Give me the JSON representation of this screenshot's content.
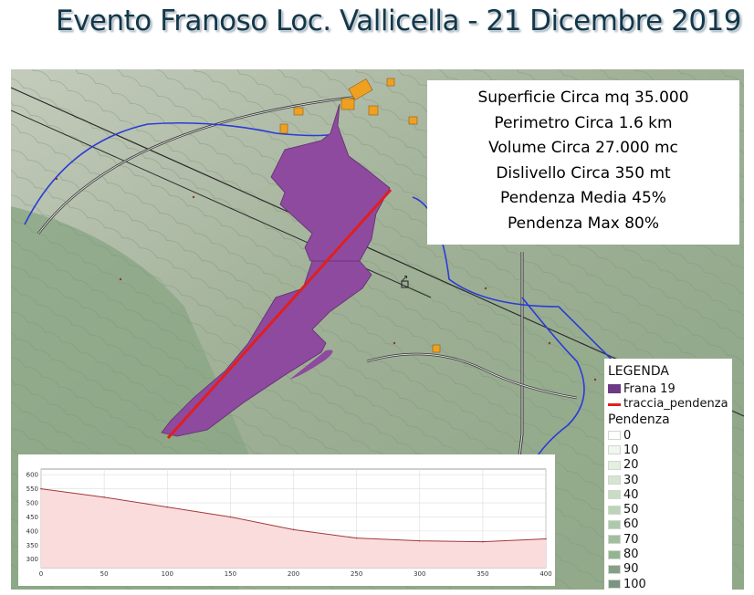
{
  "title": "Evento Franoso Loc. Vallicella - 21 Dicembre 2019",
  "stats": [
    "Superficie Circa mq 35.000",
    "Perimetro Circa 1.6 km",
    "Volume Circa 27.000 mc",
    "Dislivello Circa 350 mt",
    "Pendenza Media 45%",
    "Pendenza Max 80%"
  ],
  "legend": {
    "title": "LEGENDA",
    "items": [
      {
        "label": "Frana 19",
        "color": "#6d3a86"
      },
      {
        "label": "traccia_pendenza",
        "color": "#e01f1f"
      }
    ],
    "slope_title": "Pendenza",
    "slope_classes": [
      {
        "label": "0",
        "color": "#ffffff"
      },
      {
        "label": "10",
        "color": "#f1f6ef"
      },
      {
        "label": "20",
        "color": "#e4eee1"
      },
      {
        "label": "30",
        "color": "#d6e5d3"
      },
      {
        "label": "40",
        "color": "#c9dcc5"
      },
      {
        "label": "50",
        "color": "#bcd3b8"
      },
      {
        "label": "60",
        "color": "#aec9aa"
      },
      {
        "label": "70",
        "color": "#a1bf9e"
      },
      {
        "label": "80",
        "color": "#94b592"
      },
      {
        "label": "90",
        "color": "#879f88"
      },
      {
        "label": "100",
        "color": "#7a9382"
      }
    ]
  },
  "chart_data": {
    "type": "area",
    "x": [
      0,
      50,
      100,
      150,
      200,
      250,
      300,
      350,
      400
    ],
    "y": [
      550,
      520,
      485,
      450,
      405,
      375,
      365,
      362,
      372
    ],
    "xlim": [
      0,
      400
    ],
    "ylim": [
      270,
      620
    ],
    "xticks": [
      "0",
      "50",
      "100",
      "150",
      "200",
      "250",
      "300",
      "350",
      "400"
    ],
    "yticks": [
      "300",
      "350",
      "400",
      "450",
      "500",
      "550",
      "600"
    ],
    "line_color": "#a23a3a",
    "fill_color": "#fbdcdc",
    "grid": true
  }
}
